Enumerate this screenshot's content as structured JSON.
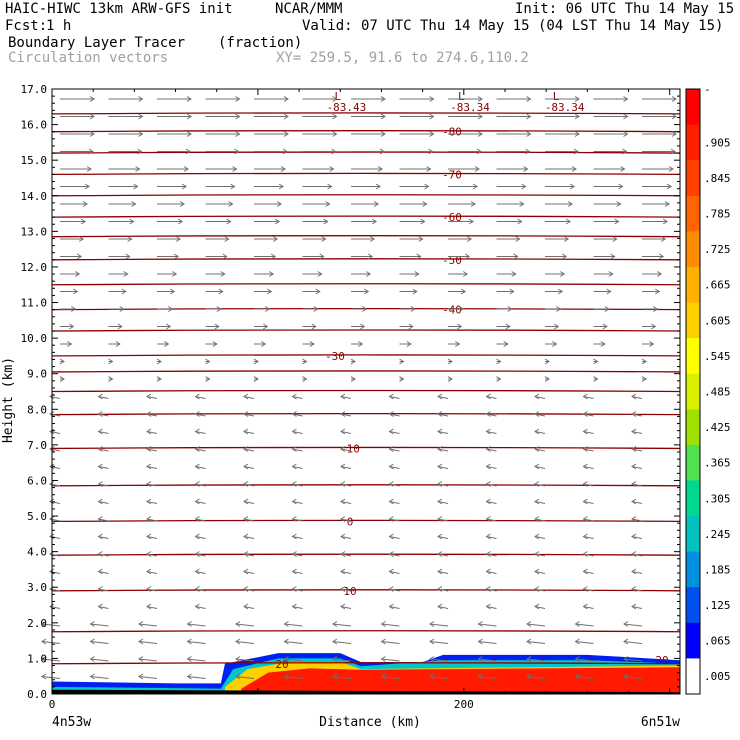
{
  "header": {
    "model_line": "HAIC-HIWC 13km ARW-GFS init",
    "org": "NCAR/MMM",
    "init": "Init: 06 UTC Thu 14 May 15",
    "fcst_label": "Fcst:",
    "fcst_value": "1 h",
    "valid": "Valid: 07 UTC Thu 14 May 15 (04 LST Thu 14 May 15)",
    "field_name": "Boundary Layer Tracer",
    "field_units": "(fraction)",
    "vector_label": "Circulation vectors",
    "xy_label": "XY= 259.5, 91.6 to 274.6,110.2"
  },
  "chart_data": {
    "type": "cross-section",
    "xlabel": "Distance (km)",
    "ylabel": "Height (km)",
    "xlim": [
      0,
      305
    ],
    "ylim": [
      0,
      17
    ],
    "x_ticks": [
      0,
      200
    ],
    "y_ticks": [
      "0.0",
      "1.0",
      "2.0",
      "3.0",
      "4.0",
      "5.0",
      "6.0",
      "7.0",
      "8.0",
      "9.0",
      "10.0",
      "11.0",
      "12.0",
      "13.0",
      "14.0",
      "15.0",
      "16.0",
      "17.0"
    ],
    "x_endpoints": {
      "left": "4n53w",
      "right": "6n51w"
    },
    "temperature_contours": [
      {
        "value": 20,
        "label": "20",
        "height_km": 0.85
      },
      {
        "value": 10,
        "label": "10",
        "height_km": 2.9
      },
      {
        "value": 0,
        "label": "0",
        "height_km": 4.85
      },
      {
        "value": -10,
        "label": "-10",
        "height_km": 6.9
      },
      {
        "value": -30,
        "label": "-30",
        "height_km": 9.5
      },
      {
        "value": -40,
        "label": "-40",
        "height_km": 10.8
      },
      {
        "value": -50,
        "label": "-50",
        "height_km": 12.2
      },
      {
        "value": -60,
        "label": "-60",
        "height_km": 13.4
      },
      {
        "value": -70,
        "label": "-70",
        "height_km": 14.6
      },
      {
        "value": -80,
        "label": "-80",
        "height_km": 15.8
      }
    ],
    "low_centers": [
      {
        "label": "L",
        "value": "-83.43",
        "distance_km": 143
      },
      {
        "label": "L",
        "value": "-83.34",
        "distance_km": 203
      },
      {
        "label": "L",
        "value": "-83.34",
        "distance_km": 249
      }
    ],
    "colorbar": {
      "labels": [
        "-",
        ".905",
        ".845",
        ".785",
        ".725",
        ".665",
        ".605",
        ".545",
        ".485",
        ".425",
        ".365",
        ".305",
        ".245",
        ".185",
        ".125",
        ".065",
        ".005"
      ],
      "colors": [
        "#ff0000",
        "#ff2000",
        "#ff4000",
        "#ff6400",
        "#ff8c00",
        "#ffb000",
        "#ffd000",
        "#ffff00",
        "#d8f000",
        "#a0e000",
        "#50e050",
        "#00d890",
        "#00c0c0",
        "#0090e0",
        "#0050f0",
        "#0000ff",
        "#ffffff"
      ]
    }
  }
}
